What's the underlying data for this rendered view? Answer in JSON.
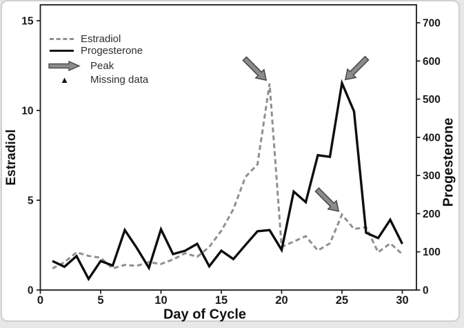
{
  "chart_data": {
    "type": "line",
    "title": "",
    "xlabel": "Day of Cycle",
    "ylabel_left": "Estradiol",
    "ylabel_right": "Progesterone",
    "x_ticks": [
      0,
      5,
      10,
      15,
      20,
      25,
      30
    ],
    "left_ticks": [
      0,
      5,
      10,
      15
    ],
    "right_ticks": [
      0,
      100,
      200,
      300,
      400,
      500,
      600,
      700
    ],
    "xlim": [
      0,
      31.2
    ],
    "ylim_left": [
      0,
      15.9
    ],
    "ylim_right": [
      0,
      748
    ],
    "grid": false,
    "x": [
      1,
      2,
      3,
      4,
      5,
      6,
      7,
      8,
      9,
      10,
      11,
      12,
      13,
      14,
      15,
      16,
      17,
      18,
      19,
      20,
      21,
      22,
      23,
      24,
      25,
      26,
      27,
      28,
      29,
      30
    ],
    "series": [
      {
        "name": "Estradiol",
        "axis": "left",
        "style": "dashed",
        "color": "#8f8f8f",
        "values": [
          1.2,
          1.55,
          2.1,
          1.9,
          1.8,
          1.2,
          1.4,
          1.35,
          1.55,
          1.45,
          1.7,
          2.05,
          1.85,
          2.4,
          3.3,
          4.5,
          6.3,
          7.0,
          11.5,
          2.4,
          2.7,
          3.0,
          2.2,
          2.6,
          4.2,
          3.4,
          3.5,
          2.1,
          2.6,
          2.0
        ]
      },
      {
        "name": "Progesterone",
        "axis": "right",
        "style": "solid",
        "color": "#0d0d0d",
        "values": [
          76,
          61,
          89,
          29,
          76,
          64,
          157,
          110,
          58,
          159,
          94,
          103,
          121,
          62,
          103,
          81,
          118,
          154,
          157,
          105,
          258,
          230,
          353,
          349,
          542,
          468,
          150,
          136,
          184,
          121
        ]
      }
    ],
    "annotations": [
      {
        "label": "Peak",
        "series": "Estradiol",
        "day": 19,
        "value": 11.5,
        "direction": "down-right"
      },
      {
        "label": "Peak",
        "series": "Progesterone",
        "day": 25,
        "value": 542,
        "direction": "down-left"
      },
      {
        "label": "Peak",
        "series": "Estradiol",
        "day": 25,
        "value": 4.2,
        "direction": "down-right"
      }
    ],
    "legend": {
      "position": "top-left",
      "items": [
        {
          "label": "Estradiol",
          "marker": "dashed-line"
        },
        {
          "label": "Progesterone",
          "marker": "solid-line"
        },
        {
          "label": "Peak",
          "marker": "arrow"
        },
        {
          "label": "Missing data",
          "marker": "triangle"
        }
      ]
    }
  },
  "colors": {
    "estradiol": "#8f8f8f",
    "progesterone": "#0d0d0d",
    "arrow_fill": "#8c8c8c",
    "arrow_stroke": "#4a4a4a",
    "axis": "#1a1a1a"
  }
}
